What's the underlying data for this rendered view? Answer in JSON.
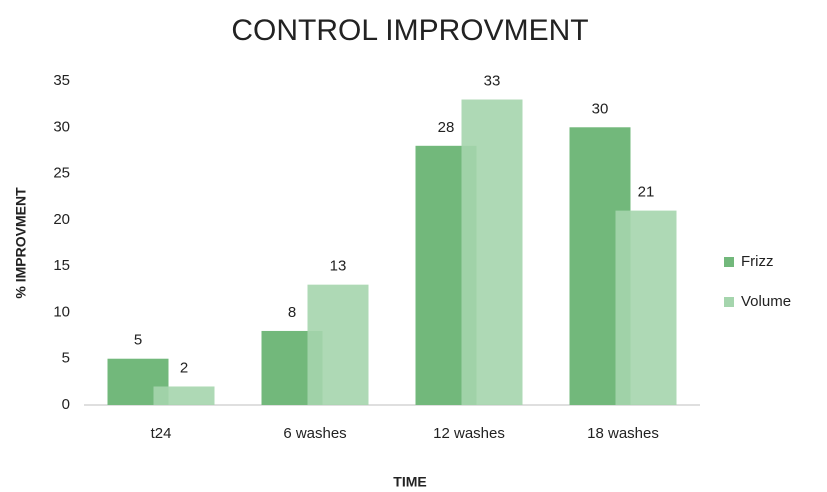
{
  "chart_data": {
    "type": "bar",
    "title": "CONTROL IMPROVMENT",
    "x_label": "TIME",
    "y_label": "% IMPROVMENT",
    "categories": [
      "t24",
      "6 washes",
      "12 washes",
      "18 washes"
    ],
    "series": [
      {
        "name": "Frizz",
        "color": "#72b87b",
        "values": [
          5,
          8,
          28,
          30
        ]
      },
      {
        "name": "Volume",
        "color": "#a5d5ad",
        "values": [
          2,
          13,
          33,
          21
        ]
      }
    ],
    "ylim": [
      0,
      35
    ],
    "yticks": [
      0,
      5,
      10,
      15,
      20,
      25,
      30,
      35
    ],
    "grid": false,
    "legend": "right",
    "data_labels": true
  }
}
